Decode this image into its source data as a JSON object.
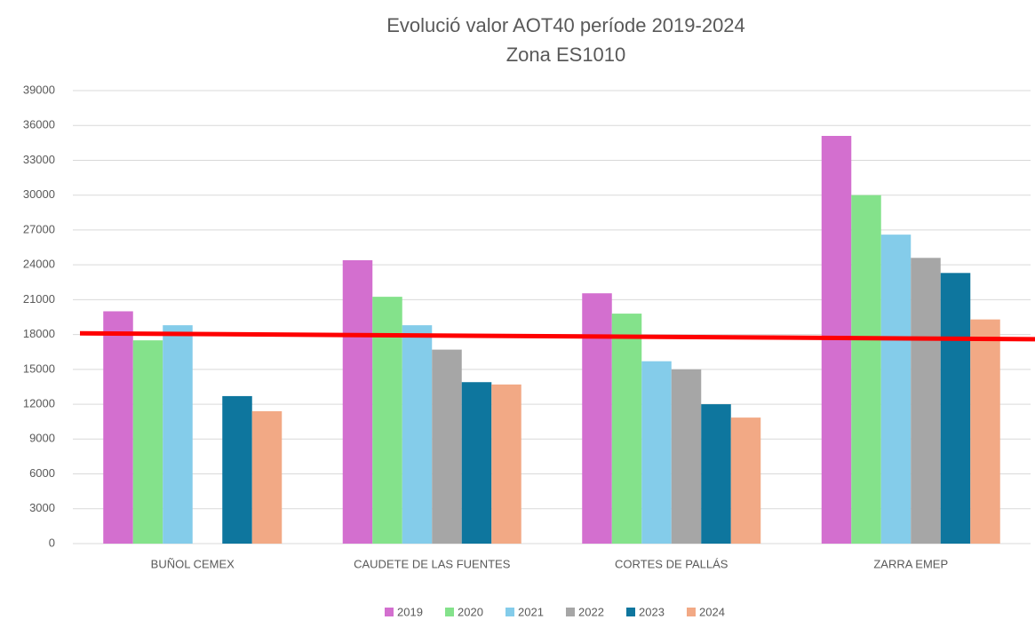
{
  "chart_data": {
    "type": "bar",
    "title": "Evolució valor AOT40 període 2019-2024",
    "subtitle": "Zona ES1010",
    "categories": [
      "BUÑOL CEMEX",
      "CAUDETE DE LAS FUENTES",
      "CORTES DE PALLÁS",
      "ZARRA EMEP"
    ],
    "series": [
      {
        "name": "2019",
        "color": "#d36fcf",
        "values": [
          20000,
          24400,
          21550,
          35100
        ]
      },
      {
        "name": "2020",
        "color": "#84e28b",
        "values": [
          17500,
          21250,
          19800,
          30000
        ]
      },
      {
        "name": "2021",
        "color": "#84ccea",
        "values": [
          18800,
          18800,
          15700,
          26600
        ]
      },
      {
        "name": "2022",
        "color": "#a6a6a6",
        "values": [
          null,
          16700,
          15000,
          24600
        ]
      },
      {
        "name": "2023",
        "color": "#0e769e",
        "values": [
          12700,
          13900,
          12000,
          23300
        ]
      },
      {
        "name": "2024",
        "color": "#f2a985",
        "values": [
          11400,
          13700,
          10850,
          19300
        ]
      }
    ],
    "reference_line": {
      "color": "#ff0000",
      "values": [
        18100,
        17600
      ]
    },
    "ylim": [
      0,
      39000
    ],
    "yticks": [
      0,
      3000,
      6000,
      9000,
      12000,
      15000,
      18000,
      21000,
      24000,
      27000,
      30000,
      33000,
      36000,
      39000
    ],
    "grid": true,
    "legend": "bottom"
  }
}
